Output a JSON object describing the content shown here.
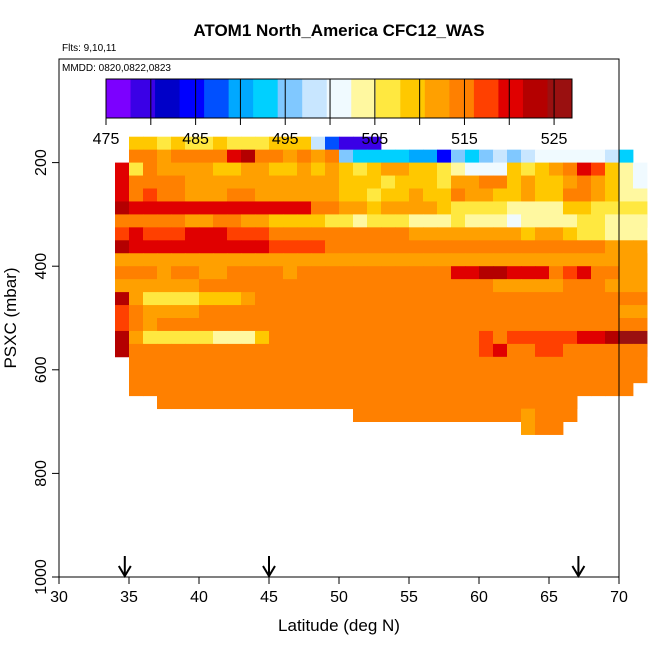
{
  "chart_data": {
    "type": "heatmap",
    "title": "ATOM1 North_America CFC12_WAS",
    "flights_note": "Flts: 9,10,11",
    "dates_note": "MMDD: 0820,0822,0823",
    "xlabel": "Latitude (deg N)",
    "ylabel": "PSXC (mbar)",
    "xlim": [
      30,
      70
    ],
    "ylim": [
      1000,
      0
    ],
    "x_ticks": [
      30,
      35,
      40,
      45,
      50,
      55,
      60,
      65,
      70
    ],
    "y_ticks": [
      200,
      400,
      600,
      800,
      1000
    ],
    "colorbar": {
      "min": 475,
      "max": 527,
      "tick_values": [
        475,
        485,
        495,
        505,
        515,
        525
      ],
      "colors": [
        "#7c00ff",
        "#3a00e6",
        "#0000c8",
        "#0000ff",
        "#0050ff",
        "#00a8ff",
        "#00d0ff",
        "#80c8ff",
        "#c8e6ff",
        "#f0faff",
        "#fff8a0",
        "#ffe840",
        "#ffc800",
        "#ffa000",
        "#ff8000",
        "#ff4000",
        "#e00000",
        "#b40000",
        "#9a1010"
      ]
    },
    "arrow_latitudes": [
      34.7,
      45,
      67.1
    ],
    "lat_bin_deg": 1,
    "pressure_bin_mbar": 50,
    "rows": [
      {
        "p": 175,
        "lat0": 35,
        "values": [
          508,
          508,
          506,
          508,
          507,
          507,
          508,
          507,
          507,
          507,
          510,
          508,
          508,
          499,
          486,
          478,
          480,
          478
        ]
      },
      {
        "p": 200,
        "lat0": 35,
        "values": [
          516,
          514,
          513,
          514,
          515,
          516,
          515,
          519,
          524,
          514,
          515,
          513,
          514,
          512,
          514,
          496,
          494,
          494,
          493,
          493,
          490,
          490,
          485,
          496,
          494,
          495,
          498,
          496,
          499,
          500,
          501,
          502,
          500,
          502,
          498,
          494
        ]
      },
      {
        "p": 225,
        "lat0": 34,
        "values": [
          521,
          506,
          516,
          513,
          513,
          512,
          513,
          510,
          510,
          511,
          512,
          509,
          508,
          511,
          509,
          511,
          508,
          507,
          510,
          512,
          512,
          509,
          508,
          506,
          504,
          502,
          501,
          502,
          508,
          507,
          510,
          512,
          516,
          519,
          517,
          508,
          503,
          500
        ]
      },
      {
        "p": 250,
        "lat0": 34,
        "values": [
          520,
          515,
          514,
          514,
          514,
          512,
          511,
          512,
          513,
          513,
          512,
          511,
          512,
          512,
          512,
          512,
          510,
          510,
          508,
          507,
          509,
          510,
          508,
          507,
          512,
          513,
          515,
          515,
          510,
          513,
          508,
          509,
          512,
          514,
          512,
          510,
          504,
          502
        ]
      },
      {
        "p": 275,
        "lat0": 34,
        "values": [
          520,
          514,
          517,
          516,
          516,
          512,
          513,
          513,
          515,
          514,
          513,
          512,
          513,
          513,
          512,
          513,
          510,
          508,
          506,
          508,
          510,
          511,
          509,
          509,
          515,
          512,
          512,
          510,
          510,
          512,
          509,
          510,
          514,
          514,
          511,
          508,
          505,
          503
        ]
      },
      {
        "p": 300,
        "lat0": 34,
        "values": [
          522,
          519,
          520,
          520,
          520,
          520,
          520,
          520,
          521,
          521,
          520,
          520,
          520,
          519,
          516,
          516,
          512,
          511,
          509,
          511,
          511,
          511,
          512,
          510,
          507,
          506,
          506,
          506,
          504,
          504,
          503,
          503,
          508,
          509,
          507,
          506,
          506,
          506
        ]
      },
      {
        "p": 325,
        "lat0": 34,
        "values": [
          516,
          516,
          514,
          514,
          514,
          513,
          513,
          514,
          514,
          513,
          511,
          510,
          509,
          509,
          508,
          507,
          507,
          505,
          506,
          506,
          506,
          505,
          505,
          505,
          506,
          505,
          503,
          503,
          502,
          503,
          504,
          504,
          504,
          506,
          506,
          503,
          503,
          503
        ]
      },
      {
        "p": 350,
        "lat0": 34,
        "values": [
          518,
          519,
          518,
          518,
          518,
          519,
          519,
          520,
          518,
          518,
          517,
          516,
          516,
          515,
          516,
          516,
          515,
          514,
          514,
          514,
          514,
          513,
          513,
          512,
          511,
          512,
          512,
          511,
          511,
          510,
          511,
          511,
          508,
          507
        ]
      },
      {
        "p": 375,
        "lat0": 34,
        "values": [
          522,
          521,
          521,
          521,
          521,
          521,
          521,
          521,
          521,
          520,
          519,
          518,
          518,
          518,
          517,
          516,
          516,
          516,
          515,
          515,
          516,
          515,
          515,
          515,
          516,
          516,
          515,
          515,
          515,
          515,
          515,
          515,
          515,
          515,
          514,
          513,
          512,
          511
        ]
      },
      {
        "p": 400,
        "lat0": 34,
        "values": [
          513,
          513,
          513,
          513,
          513,
          513,
          513,
          513,
          513,
          513,
          513,
          513,
          513,
          513,
          513,
          513,
          513,
          513,
          513,
          513,
          513,
          513,
          513,
          513,
          513,
          513,
          513,
          513,
          513,
          513,
          513,
          513,
          513,
          513,
          513,
          512,
          512,
          512
        ]
      },
      {
        "p": 425,
        "lat0": 34,
        "values": [
          516,
          514,
          514,
          513,
          514,
          515,
          513,
          513,
          514,
          514,
          515,
          514,
          513,
          514,
          514,
          515,
          514,
          515,
          514,
          514,
          515,
          514,
          514,
          515,
          519,
          520,
          523,
          522,
          519,
          520,
          520,
          516,
          517,
          519,
          515,
          514,
          512,
          512
        ]
      },
      {
        "p": 450,
        "lat0": 34,
        "values": [
          513,
          513,
          513,
          513,
          513,
          513,
          514,
          514,
          514,
          515,
          515,
          515,
          515,
          514,
          514,
          515,
          515,
          515,
          514,
          514,
          514,
          514,
          514,
          514,
          514,
          514,
          514,
          513,
          513,
          513,
          513,
          513,
          514,
          514,
          514,
          513,
          513,
          513
        ]
      },
      {
        "p": 475,
        "lat0": 34,
        "values": [
          522,
          511,
          507,
          507,
          507,
          507,
          508,
          510,
          508,
          513,
          515,
          514,
          515,
          514,
          514,
          515,
          514,
          515,
          515,
          515,
          515,
          514,
          514,
          515,
          514,
          514,
          515,
          514,
          515,
          515,
          515,
          515,
          515,
          515,
          515,
          514,
          514,
          514
        ]
      },
      {
        "p": 500,
        "lat0": 34,
        "values": [
          518,
          514,
          513,
          513,
          513,
          513,
          514,
          514,
          515,
          515,
          516,
          516,
          516,
          515,
          516,
          516,
          515,
          515,
          514,
          515,
          515,
          515,
          515,
          515,
          515,
          515,
          515,
          515,
          515,
          515,
          515,
          514,
          515,
          516,
          514,
          514,
          512,
          512
        ]
      },
      {
        "p": 525,
        "lat0": 34,
        "values": [
          518,
          514,
          513,
          514,
          514,
          514,
          515,
          515,
          515,
          516,
          516,
          516,
          516,
          515,
          516,
          516,
          516,
          516,
          515,
          515,
          515,
          515,
          515,
          515,
          515,
          515,
          515,
          515,
          515,
          515,
          515,
          514,
          514,
          514,
          514,
          514,
          514,
          514
        ]
      },
      {
        "p": 550,
        "lat0": 34,
        "values": [
          522,
          512,
          507,
          507,
          507,
          507,
          506,
          505,
          504,
          503,
          509,
          514,
          516,
          516,
          516,
          516,
          516,
          516,
          516,
          516,
          516,
          516,
          516,
          516,
          516,
          516,
          517,
          516,
          518,
          518,
          518,
          517,
          518,
          521,
          519,
          522,
          525,
          525
        ]
      },
      {
        "p": 575,
        "lat0": 35,
        "values": [
          514,
          514,
          514,
          514,
          514,
          514,
          514,
          514,
          514,
          515,
          515,
          515,
          516,
          516,
          516,
          516,
          516,
          516,
          516,
          516,
          516,
          516,
          516,
          516,
          516,
          517,
          521,
          516,
          516,
          517,
          517,
          516,
          516,
          516,
          515,
          516,
          516
        ]
      },
      {
        "p": 600,
        "lat0": 35,
        "values": [
          514,
          514,
          514,
          514,
          514,
          514,
          514,
          514,
          514,
          514,
          514,
          514,
          514,
          514,
          514,
          514,
          514,
          514,
          514,
          514,
          514,
          514,
          514,
          514,
          514,
          514,
          514,
          514,
          514,
          514,
          514,
          514,
          514,
          514,
          514,
          514,
          514
        ]
      },
      {
        "p": 625,
        "lat0": 35,
        "values": [
          515,
          515,
          515,
          515,
          515,
          515,
          515,
          515,
          516,
          516,
          516,
          516,
          516,
          516,
          516,
          516,
          516,
          516,
          516,
          516,
          516,
          516,
          516,
          516,
          516,
          516,
          516,
          516,
          516,
          516,
          516,
          516,
          516,
          516,
          516,
          516
        ]
      },
      {
        "p": 650,
        "lat0": 37,
        "values": [
          515,
          515,
          515,
          515,
          515,
          515,
          515,
          515,
          515,
          515,
          515,
          515,
          515,
          515,
          515,
          515,
          515,
          515,
          515,
          515,
          515,
          515,
          515,
          515,
          515,
          515,
          515,
          515,
          515,
          515
        ]
      },
      {
        "p": 675,
        "lat0": 51,
        "values": [
          514,
          514,
          514,
          514,
          514,
          514,
          514,
          514,
          514,
          514,
          514,
          514,
          514,
          514,
          514,
          514
        ]
      },
      {
        "p": 700,
        "lat0": 63,
        "values": [
          513,
          514,
          514
        ]
      }
    ]
  }
}
